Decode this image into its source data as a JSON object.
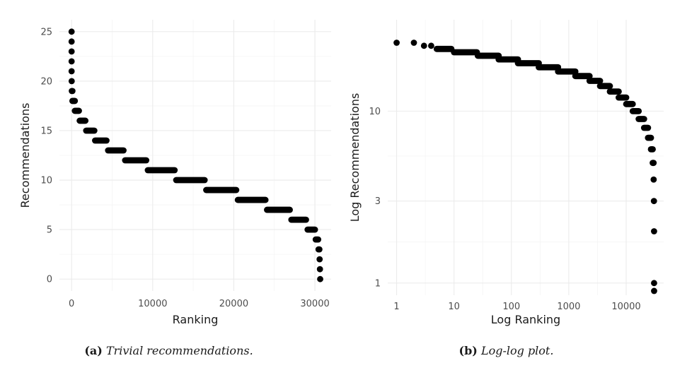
{
  "chart_data": [
    {
      "type": "scatter",
      "caption_label": "(a)",
      "caption_text": "Trivial recommendations.",
      "xlabel": "Ranking",
      "ylabel": "Recommendations",
      "xlim": [
        -1500,
        32000
      ],
      "ylim": [
        -1.2,
        26.2
      ],
      "xticks": [
        0,
        10000,
        20000,
        30000
      ],
      "xtick_labels": [
        "0",
        "10000",
        "20000",
        "30000"
      ],
      "yticks": [
        0,
        5,
        10,
        15,
        20,
        25
      ],
      "ytick_labels": [
        "0",
        "5",
        "10",
        "15",
        "20",
        "25"
      ],
      "grid": true,
      "segments": [
        {
          "y": 25,
          "x_start": 0,
          "x_end": 0
        },
        {
          "y": 24,
          "x_start": 0,
          "x_end": 0
        },
        {
          "y": 23,
          "x_start": 0,
          "x_end": 0
        },
        {
          "y": 22,
          "x_start": 0,
          "x_end": 0
        },
        {
          "y": 21,
          "x_start": 0,
          "x_end": 10
        },
        {
          "y": 20,
          "x_start": 10,
          "x_end": 30
        },
        {
          "y": 19,
          "x_start": 30,
          "x_end": 100
        },
        {
          "y": 18,
          "x_start": 100,
          "x_end": 400
        },
        {
          "y": 17,
          "x_start": 400,
          "x_end": 900
        },
        {
          "y": 16,
          "x_start": 1000,
          "x_end": 1700
        },
        {
          "y": 15,
          "x_start": 1800,
          "x_end": 2800
        },
        {
          "y": 14,
          "x_start": 2900,
          "x_end": 4300
        },
        {
          "y": 13,
          "x_start": 4500,
          "x_end": 6400
        },
        {
          "y": 12,
          "x_start": 6600,
          "x_end": 9200
        },
        {
          "y": 11,
          "x_start": 9400,
          "x_end": 12700
        },
        {
          "y": 10,
          "x_start": 12900,
          "x_end": 16400
        },
        {
          "y": 9,
          "x_start": 16600,
          "x_end": 20300
        },
        {
          "y": 8,
          "x_start": 20500,
          "x_end": 23900
        },
        {
          "y": 7,
          "x_start": 24100,
          "x_end": 26900
        },
        {
          "y": 6,
          "x_start": 27100,
          "x_end": 28900
        },
        {
          "y": 5,
          "x_start": 29100,
          "x_end": 30000
        },
        {
          "y": 4,
          "x_start": 30100,
          "x_end": 30400
        },
        {
          "y": 3,
          "x_start": 30450,
          "x_end": 30550
        },
        {
          "y": 2,
          "x_start": 30580,
          "x_end": 30600
        },
        {
          "y": 1,
          "x_start": 30620,
          "x_end": 30620
        },
        {
          "y": 0,
          "x_start": 30650,
          "x_end": 30650
        }
      ]
    },
    {
      "type": "scatter",
      "caption_label": "(b)",
      "caption_text": "Log-log plot.",
      "xlabel": "Log Ranking",
      "ylabel": "Log Recommendations",
      "log_x": true,
      "log_y": true,
      "xlim": [
        0.7,
        45000
      ],
      "ylim": [
        0.85,
        34
      ],
      "xticks": [
        1,
        10,
        100,
        1000,
        10000
      ],
      "xtick_labels": [
        "1",
        "10",
        "100",
        "1000",
        "10000"
      ],
      "yticks": [
        1,
        3,
        10
      ],
      "ytick_labels": [
        "1",
        "3",
        "10"
      ],
      "grid": true,
      "segments": [
        {
          "y": 25,
          "x_start": 1,
          "x_end": 1
        },
        {
          "y": 25,
          "x_start": 2,
          "x_end": 2
        },
        {
          "y": 24,
          "x_start": 3,
          "x_end": 3
        },
        {
          "y": 24,
          "x_start": 4,
          "x_end": 4
        },
        {
          "y": 23,
          "x_start": 5,
          "x_end": 9
        },
        {
          "y": 22,
          "x_start": 10,
          "x_end": 25
        },
        {
          "y": 21,
          "x_start": 26,
          "x_end": 60
        },
        {
          "y": 20,
          "x_start": 60,
          "x_end": 130
        },
        {
          "y": 19,
          "x_start": 130,
          "x_end": 300
        },
        {
          "y": 18,
          "x_start": 300,
          "x_end": 650
        },
        {
          "y": 17,
          "x_start": 650,
          "x_end": 1300
        },
        {
          "y": 16,
          "x_start": 1300,
          "x_end": 2300
        },
        {
          "y": 15,
          "x_start": 2300,
          "x_end": 3500
        },
        {
          "y": 14,
          "x_start": 3500,
          "x_end": 5200
        },
        {
          "y": 13,
          "x_start": 5200,
          "x_end": 7400
        },
        {
          "y": 12,
          "x_start": 7400,
          "x_end": 10000
        },
        {
          "y": 11,
          "x_start": 10000,
          "x_end": 13000
        },
        {
          "y": 10,
          "x_start": 13000,
          "x_end": 16500
        },
        {
          "y": 9,
          "x_start": 16500,
          "x_end": 20500
        },
        {
          "y": 8,
          "x_start": 20500,
          "x_end": 24000
        },
        {
          "y": 7,
          "x_start": 24000,
          "x_end": 27000
        },
        {
          "y": 6,
          "x_start": 27000,
          "x_end": 29000
        },
        {
          "y": 5,
          "x_start": 29000,
          "x_end": 30000
        },
        {
          "y": 4,
          "x_start": 30100,
          "x_end": 30400
        },
        {
          "y": 3,
          "x_start": 30450,
          "x_end": 30550
        },
        {
          "y": 2,
          "x_start": 30600,
          "x_end": 30600
        },
        {
          "y": 1,
          "x_start": 30620,
          "x_end": 30620
        },
        {
          "y": 0.9,
          "x_start": 30650,
          "x_end": 30650
        }
      ]
    }
  ]
}
